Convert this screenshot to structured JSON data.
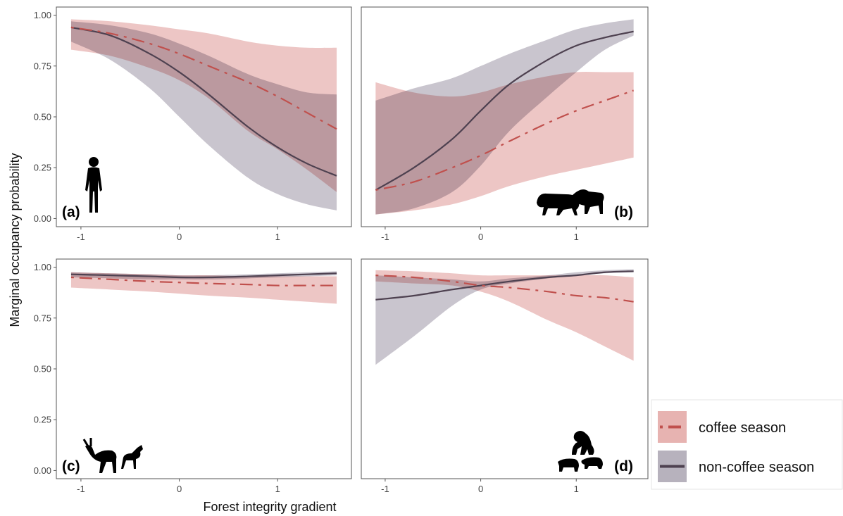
{
  "colors": {
    "coffee_line": "#c0504d",
    "coffee_band": "#e7b3b1",
    "noncoffee_line": "#4e4150",
    "noncoffee_band": "#b7b2bd",
    "panel_border": "#555555",
    "silhouette": "#000000"
  },
  "axes": {
    "x_title": "Forest integrity gradient",
    "y_title": "Marginal occupancy probability",
    "x_ticks": [
      -1,
      0,
      1
    ],
    "x_tick_labels": [
      "-1",
      "0",
      "1"
    ],
    "y_ticks": [
      0,
      0.25,
      0.5,
      0.75,
      1
    ],
    "y_tick_labels": [
      "0.00",
      "0.25",
      "0.50",
      "0.75",
      "1.00"
    ]
  },
  "legend": {
    "entries": [
      {
        "label": "coffee season",
        "line_style": "dashdot",
        "color_key": "coffee"
      },
      {
        "label": "non-coffee season",
        "line_style": "solid",
        "color_key": "noncoffee"
      }
    ]
  },
  "chart_data": [
    {
      "type": "line",
      "panel": "(a)",
      "icon": "human-silhouette-icon",
      "xlim": [
        -1.25,
        1.75
      ],
      "ylim": [
        -0.04,
        1.04
      ],
      "series": [
        {
          "name": "coffee season",
          "x": [
            -1.1,
            -0.7,
            -0.3,
            0.0,
            0.3,
            0.7,
            1.0,
            1.3,
            1.6
          ],
          "y": [
            0.94,
            0.91,
            0.86,
            0.81,
            0.75,
            0.67,
            0.6,
            0.52,
            0.44
          ],
          "lower": [
            0.83,
            0.8,
            0.74,
            0.68,
            0.59,
            0.43,
            0.34,
            0.24,
            0.13
          ],
          "upper": [
            0.98,
            0.97,
            0.95,
            0.93,
            0.91,
            0.87,
            0.85,
            0.84,
            0.84
          ]
        },
        {
          "name": "non-coffee season",
          "x": [
            -1.1,
            -0.7,
            -0.3,
            0.0,
            0.3,
            0.7,
            1.0,
            1.3,
            1.6
          ],
          "y": [
            0.94,
            0.9,
            0.81,
            0.72,
            0.61,
            0.45,
            0.35,
            0.27,
            0.21
          ],
          "lower": [
            0.87,
            0.78,
            0.64,
            0.5,
            0.36,
            0.2,
            0.12,
            0.07,
            0.04
          ],
          "upper": [
            0.97,
            0.95,
            0.91,
            0.86,
            0.8,
            0.71,
            0.66,
            0.62,
            0.61
          ]
        }
      ]
    },
    {
      "type": "line",
      "panel": "(b)",
      "icon": "big-cats-silhouette-icon",
      "xlim": [
        -1.25,
        1.75
      ],
      "ylim": [
        -0.04,
        1.04
      ],
      "series": [
        {
          "name": "coffee season",
          "x": [
            -1.1,
            -0.7,
            -0.3,
            0.0,
            0.3,
            0.7,
            1.0,
            1.3,
            1.6
          ],
          "y": [
            0.14,
            0.18,
            0.25,
            0.31,
            0.38,
            0.47,
            0.53,
            0.58,
            0.63
          ],
          "lower": [
            0.02,
            0.04,
            0.07,
            0.11,
            0.16,
            0.21,
            0.24,
            0.27,
            0.3
          ],
          "upper": [
            0.67,
            0.62,
            0.6,
            0.62,
            0.66,
            0.7,
            0.72,
            0.72,
            0.72
          ]
        },
        {
          "name": "non-coffee season",
          "x": [
            -1.1,
            -0.7,
            -0.3,
            0.0,
            0.3,
            0.7,
            1.0,
            1.3,
            1.6
          ],
          "y": [
            0.14,
            0.25,
            0.39,
            0.53,
            0.66,
            0.78,
            0.85,
            0.89,
            0.92
          ],
          "lower": [
            0.02,
            0.05,
            0.13,
            0.26,
            0.43,
            0.6,
            0.72,
            0.83,
            0.9
          ],
          "upper": [
            0.58,
            0.64,
            0.69,
            0.75,
            0.81,
            0.88,
            0.93,
            0.96,
            0.98
          ]
        }
      ]
    },
    {
      "type": "line",
      "panel": "(c)",
      "icon": "antelope-silhouette-icon",
      "xlim": [
        -1.25,
        1.75
      ],
      "ylim": [
        -0.04,
        1.04
      ],
      "series": [
        {
          "name": "coffee season",
          "x": [
            -1.1,
            -0.7,
            -0.3,
            0.0,
            0.3,
            0.7,
            1.0,
            1.3,
            1.6
          ],
          "y": [
            0.95,
            0.94,
            0.93,
            0.925,
            0.92,
            0.915,
            0.91,
            0.91,
            0.91
          ],
          "lower": [
            0.9,
            0.89,
            0.88,
            0.87,
            0.86,
            0.85,
            0.84,
            0.83,
            0.82
          ],
          "upper": [
            0.975,
            0.97,
            0.965,
            0.96,
            0.96,
            0.955,
            0.955,
            0.955,
            0.955
          ]
        },
        {
          "name": "non-coffee season",
          "x": [
            -1.1,
            -0.7,
            -0.3,
            0.0,
            0.3,
            0.7,
            1.0,
            1.3,
            1.6
          ],
          "y": [
            0.965,
            0.96,
            0.955,
            0.95,
            0.95,
            0.955,
            0.96,
            0.965,
            0.97
          ],
          "lower": [
            0.95,
            0.945,
            0.94,
            0.94,
            0.94,
            0.945,
            0.95,
            0.955,
            0.96
          ],
          "upper": [
            0.975,
            0.97,
            0.965,
            0.96,
            0.96,
            0.965,
            0.97,
            0.975,
            0.98
          ]
        }
      ]
    },
    {
      "type": "line",
      "panel": "(d)",
      "icon": "baboon-and-pigs-silhouette-icon",
      "xlim": [
        -1.25,
        1.75
      ],
      "ylim": [
        -0.04,
        1.04
      ],
      "series": [
        {
          "name": "coffee season",
          "x": [
            -1.1,
            -0.7,
            -0.3,
            0.0,
            0.3,
            0.7,
            1.0,
            1.3,
            1.6
          ],
          "y": [
            0.96,
            0.95,
            0.93,
            0.91,
            0.9,
            0.88,
            0.86,
            0.85,
            0.83
          ],
          "lower": [
            0.93,
            0.92,
            0.91,
            0.88,
            0.83,
            0.74,
            0.68,
            0.61,
            0.54
          ],
          "upper": [
            0.985,
            0.98,
            0.97,
            0.96,
            0.96,
            0.96,
            0.96,
            0.96,
            0.95
          ]
        },
        {
          "name": "non-coffee season",
          "x": [
            -1.1,
            -0.7,
            -0.3,
            0.0,
            0.3,
            0.7,
            1.0,
            1.3,
            1.6
          ],
          "y": [
            0.84,
            0.86,
            0.89,
            0.91,
            0.93,
            0.95,
            0.96,
            0.975,
            0.98
          ],
          "lower": [
            0.52,
            0.66,
            0.81,
            0.89,
            0.92,
            0.945,
            0.96,
            0.97,
            0.975
          ],
          "upper": [
            0.96,
            0.95,
            0.94,
            0.93,
            0.945,
            0.96,
            0.975,
            0.985,
            0.99
          ]
        }
      ]
    }
  ]
}
